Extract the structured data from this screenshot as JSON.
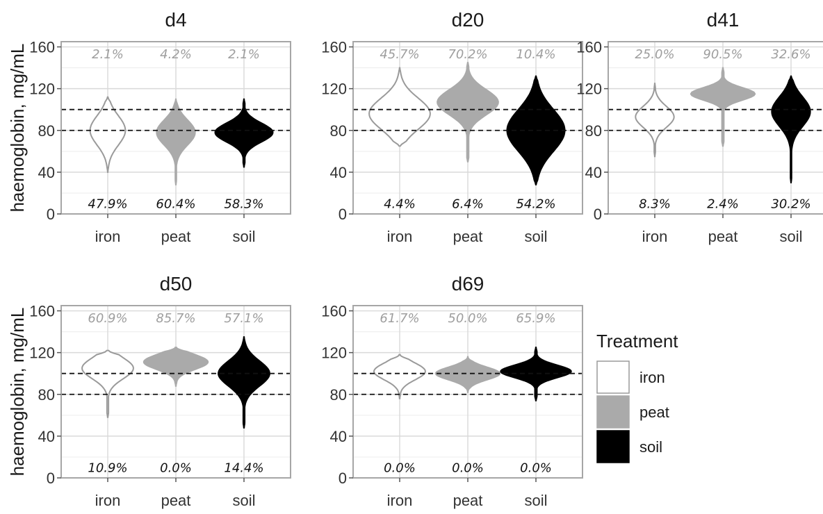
{
  "chart_data": {
    "type": "violin",
    "ylabel": "haemoglobin, mg/mL",
    "ylim": [
      0,
      165
    ],
    "yticks": [
      0,
      40,
      80,
      120,
      160
    ],
    "hlines": [
      80,
      100
    ],
    "categories": [
      "iron",
      "peat",
      "soil"
    ],
    "colors": {
      "iron": "#ffffff",
      "peat": "#aaaaaa",
      "soil": "#000000"
    },
    "legend": {
      "title": "Treatment",
      "items": [
        "iron",
        "peat",
        "soil"
      ],
      "position": "right"
    },
    "panels": [
      {
        "title": "d4",
        "violins": [
          {
            "treatment": "iron",
            "min": 40,
            "max": 112,
            "peak": 80,
            "spread": 14,
            "width": 0.55
          },
          {
            "treatment": "peat",
            "min": 28,
            "max": 110,
            "peak": 78,
            "spread": 12,
            "width": 0.6
          },
          {
            "treatment": "soil",
            "min": 45,
            "max": 110,
            "peak": 78,
            "spread": 9,
            "width": 0.9
          }
        ],
        "above_pct": [
          "2.1%",
          "4.2%",
          "2.1%"
        ],
        "below_pct": [
          "47.9%",
          "60.4%",
          "58.3%"
        ]
      },
      {
        "title": "d20",
        "violins": [
          {
            "treatment": "iron",
            "min": 65,
            "max": 140,
            "peak": 96,
            "spread": 15,
            "width": 0.95
          },
          {
            "treatment": "peat",
            "min": 50,
            "max": 145,
            "peak": 107,
            "spread": 12,
            "width": 0.95
          },
          {
            "treatment": "soil",
            "min": 28,
            "max": 132,
            "peak": 80,
            "spread": 20,
            "width": 0.9
          }
        ],
        "above_pct": [
          "45.7%",
          "70.2%",
          "10.4%"
        ],
        "below_pct": [
          "4.4%",
          "6.4%",
          "54.2%"
        ]
      },
      {
        "title": "d41",
        "violins": [
          {
            "treatment": "iron",
            "min": 55,
            "max": 125,
            "peak": 93,
            "spread": 10,
            "width": 0.6
          },
          {
            "treatment": "peat",
            "min": 65,
            "max": 140,
            "peak": 115,
            "spread": 6,
            "width": 1.0
          },
          {
            "treatment": "soil",
            "min": 30,
            "max": 132,
            "peak": 98,
            "spread": 14,
            "width": 0.6
          }
        ],
        "above_pct": [
          "25.0%",
          "90.5%",
          "32.6%"
        ],
        "below_pct": [
          "8.3%",
          "2.4%",
          "30.2%"
        ]
      },
      {
        "title": "d50",
        "violins": [
          {
            "treatment": "iron",
            "min": 58,
            "max": 122,
            "peak": 105,
            "spread": 10,
            "width": 0.8
          },
          {
            "treatment": "peat",
            "min": 88,
            "max": 125,
            "peak": 111,
            "spread": 7,
            "width": 1.0
          },
          {
            "treatment": "soil",
            "min": 48,
            "max": 135,
            "peak": 100,
            "spread": 12,
            "width": 0.8
          }
        ],
        "above_pct": [
          "60.9%",
          "85.7%",
          "57.1%"
        ],
        "below_pct": [
          "10.9%",
          "0.0%",
          "14.4%"
        ]
      },
      {
        "title": "d69",
        "violins": [
          {
            "treatment": "iron",
            "min": 76,
            "max": 118,
            "peak": 102,
            "spread": 8,
            "width": 0.8
          },
          {
            "treatment": "peat",
            "min": 82,
            "max": 116,
            "peak": 100,
            "spread": 6,
            "width": 1.0
          },
          {
            "treatment": "soil",
            "min": 74,
            "max": 125,
            "peak": 102,
            "spread": 6,
            "width": 1.1
          }
        ],
        "above_pct": [
          "61.7%",
          "50.0%",
          "65.9%"
        ],
        "below_pct": [
          "0.0%",
          "0.0%",
          "0.0%"
        ]
      }
    ]
  }
}
